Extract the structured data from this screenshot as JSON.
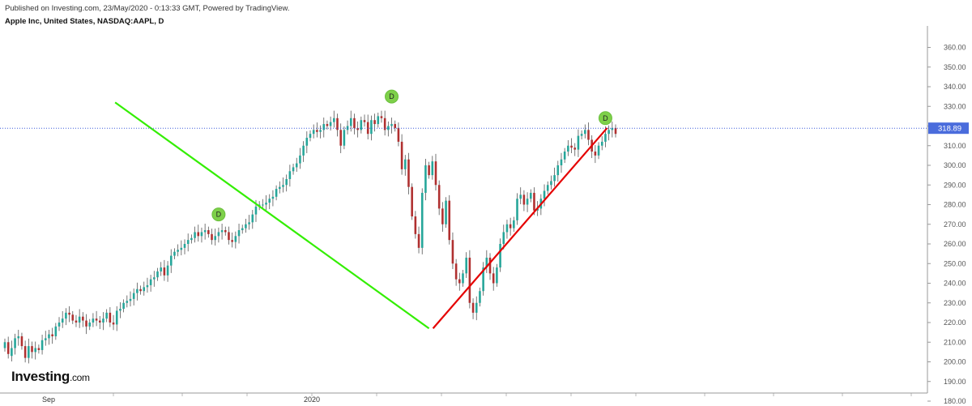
{
  "header": {
    "published": "Published on Investing.com, 23/May/2020 - 0:13:33 GMT, Powered by TradingView.",
    "symbol": "Apple Inc, United States, NASDAQ:AAPL, D"
  },
  "logo": {
    "brand": "Investing",
    "suffix": ".com"
  },
  "colors": {
    "up": "#26a69a",
    "down": "#b03030",
    "wick": "#555555",
    "trend_down": "#33ee00",
    "trend_up": "#e50000",
    "marker": "#7ed04a",
    "price_line": "#3b5bdb",
    "price_label_bg": "#4a6cdc"
  },
  "chart_data": {
    "type": "candlestick",
    "title": "Apple Inc, United States, NASDAQ:AAPL, D",
    "ylim": [
      175,
      362
    ],
    "yticks": [
      180,
      190,
      200,
      210,
      220,
      230,
      240,
      250,
      260,
      270,
      280,
      290,
      300,
      310,
      320,
      330,
      340,
      350,
      360
    ],
    "ytick_labels": [
      "180.00",
      "190.00",
      "200.00",
      "210.00",
      "220.00",
      "230.00",
      "240.00",
      "250.00",
      "260.00",
      "270.00",
      "280.00",
      "290.00",
      "300.00",
      "310.00",
      "320.00",
      "330.00",
      "340.00",
      "350.00",
      "360.00"
    ],
    "xlabels": [
      "Sep",
      "2020"
    ],
    "current_price": 318.89,
    "current_price_label": "318.89",
    "candles": [
      [
        207,
        210
      ],
      [
        210,
        204
      ],
      [
        203,
        207
      ],
      [
        207,
        212
      ],
      [
        212,
        213
      ],
      [
        213,
        208
      ],
      [
        208,
        202
      ],
      [
        202,
        208
      ],
      [
        208,
        205
      ],
      [
        205,
        207
      ],
      [
        207,
        206
      ],
      [
        206,
        211
      ],
      [
        211,
        212
      ],
      [
        212,
        214
      ],
      [
        214,
        213
      ],
      [
        213,
        218
      ],
      [
        218,
        220
      ],
      [
        220,
        222
      ],
      [
        222,
        225
      ],
      [
        225,
        224
      ],
      [
        224,
        221
      ],
      [
        221,
        220
      ],
      [
        220,
        223
      ],
      [
        223,
        221
      ],
      [
        221,
        218
      ],
      [
        218,
        220
      ],
      [
        220,
        222
      ],
      [
        222,
        221
      ],
      [
        221,
        220
      ],
      [
        220,
        222
      ],
      [
        222,
        225
      ],
      [
        225,
        220
      ],
      [
        220,
        219
      ],
      [
        219,
        226
      ],
      [
        226,
        227
      ],
      [
        227,
        230
      ],
      [
        230,
        231
      ],
      [
        231,
        232
      ],
      [
        232,
        235
      ],
      [
        235,
        237
      ],
      [
        237,
        236
      ],
      [
        236,
        238
      ],
      [
        238,
        239
      ],
      [
        239,
        242
      ],
      [
        242,
        243
      ],
      [
        243,
        246
      ],
      [
        246,
        248
      ],
      [
        248,
        244
      ],
      [
        244,
        249
      ],
      [
        249,
        254
      ],
      [
        254,
        256
      ],
      [
        256,
        257
      ],
      [
        257,
        258
      ],
      [
        258,
        260
      ],
      [
        260,
        262
      ],
      [
        262,
        263
      ],
      [
        263,
        266
      ],
      [
        266,
        264
      ],
      [
        264,
        266
      ],
      [
        266,
        267
      ],
      [
        267,
        265
      ],
      [
        265,
        262
      ],
      [
        262,
        264
      ],
      [
        264,
        266
      ],
      [
        266,
        267
      ],
      [
        267,
        266
      ],
      [
        266,
        262
      ],
      [
        262,
        261
      ],
      [
        261,
        264
      ],
      [
        264,
        267
      ],
      [
        267,
        268
      ],
      [
        268,
        270
      ],
      [
        270,
        271
      ],
      [
        271,
        275
      ],
      [
        275,
        279
      ],
      [
        279,
        280
      ],
      [
        280,
        280
      ],
      [
        280,
        281
      ],
      [
        281,
        283
      ],
      [
        283,
        284
      ],
      [
        284,
        288
      ],
      [
        288,
        289
      ],
      [
        289,
        290
      ],
      [
        290,
        293
      ],
      [
        293,
        297
      ],
      [
        297,
        299
      ],
      [
        299,
        301
      ],
      [
        301,
        305
      ],
      [
        305,
        310
      ],
      [
        310,
        314
      ],
      [
        314,
        316
      ],
      [
        316,
        318
      ],
      [
        318,
        317
      ],
      [
        317,
        318
      ],
      [
        318,
        321
      ],
      [
        321,
        320
      ],
      [
        320,
        322
      ],
      [
        322,
        324
      ],
      [
        324,
        318
      ],
      [
        318,
        310
      ],
      [
        310,
        318
      ],
      [
        318,
        320
      ],
      [
        320,
        324
      ],
      [
        324,
        319
      ],
      [
        319,
        318
      ],
      [
        318,
        323
      ],
      [
        323,
        322
      ],
      [
        322,
        316
      ],
      [
        316,
        323
      ],
      [
        323,
        321
      ],
      [
        321,
        325
      ],
      [
        325,
        324
      ],
      [
        324,
        318
      ],
      [
        318,
        320
      ],
      [
        320,
        321
      ],
      [
        321,
        319
      ],
      [
        319,
        312
      ],
      [
        312,
        298
      ],
      [
        298,
        303
      ],
      [
        303,
        289
      ],
      [
        289,
        274
      ],
      [
        274,
        265
      ],
      [
        265,
        258
      ],
      [
        258,
        286
      ],
      [
        286,
        300
      ],
      [
        300,
        295
      ],
      [
        295,
        302
      ],
      [
        302,
        290
      ],
      [
        290,
        278
      ],
      [
        278,
        270
      ],
      [
        270,
        282
      ],
      [
        282,
        262
      ],
      [
        262,
        250
      ],
      [
        250,
        242
      ],
      [
        242,
        240
      ],
      [
        240,
        245
      ],
      [
        245,
        253
      ],
      [
        253,
        230
      ],
      [
        230,
        225
      ],
      [
        225,
        230
      ],
      [
        230,
        236
      ],
      [
        236,
        248
      ],
      [
        248,
        253
      ],
      [
        253,
        245
      ],
      [
        245,
        240
      ],
      [
        240,
        248
      ],
      [
        248,
        260
      ],
      [
        260,
        266
      ],
      [
        266,
        270
      ],
      [
        270,
        268
      ],
      [
        268,
        272
      ],
      [
        272,
        283
      ],
      [
        283,
        285
      ],
      [
        285,
        280
      ],
      [
        280,
        283
      ],
      [
        283,
        286
      ],
      [
        286,
        277
      ],
      [
        277,
        278
      ],
      [
        278,
        283
      ],
      [
        283,
        287
      ],
      [
        287,
        290
      ],
      [
        290,
        292
      ],
      [
        292,
        295
      ],
      [
        295,
        300
      ],
      [
        300,
        303
      ],
      [
        303,
        307
      ],
      [
        307,
        310
      ],
      [
        310,
        309
      ],
      [
        309,
        308
      ],
      [
        308,
        315
      ],
      [
        315,
        316
      ],
      [
        316,
        318
      ],
      [
        318,
        313
      ],
      [
        313,
        307
      ],
      [
        307,
        305
      ],
      [
        305,
        310
      ],
      [
        310,
        312
      ],
      [
        312,
        316
      ],
      [
        316,
        318
      ],
      [
        318,
        319
      ],
      [
        319,
        316
      ]
    ],
    "trend_lines": [
      {
        "name": "decline",
        "from": [
          325,
          332
        ],
        "to": [
          1250,
          217
        ]
      },
      {
        "name": "recovery",
        "from": [
          1250,
          217
        ],
        "to": [
          1775,
          319
        ]
      }
    ],
    "dividend_markers": [
      {
        "label": "D",
        "index": 63,
        "price": 275
      },
      {
        "label": "D",
        "index": 114,
        "price": 335
      },
      {
        "label": "D",
        "index": 177,
        "price": 324
      }
    ]
  }
}
